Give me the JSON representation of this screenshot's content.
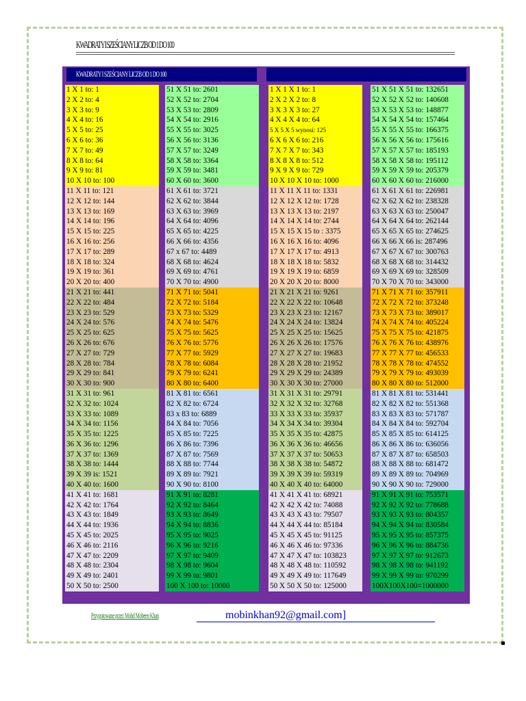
{
  "document": {
    "title": "KWADRATY I SZEŚCIANY LICZB OD 1 DO 100",
    "header_left": "KWADRATY I SZEŚCIANY LICZB OD 1 DO 100",
    "header_right": "",
    "footer_prepared": "Przygotowane przez Mohd Mobeen Khan",
    "footer_email": "mobinkhan92@gmail.com]"
  },
  "colors": {
    "outer": "#7030a0",
    "header": "#000080",
    "group_left": [
      "#ffff00",
      "#fbd4b4",
      "#c4bc96",
      "#c2d69b",
      "#e5e0ec"
    ],
    "group_right": [
      "#99ff99",
      "#d9d9d9",
      "#ffc000",
      "#c6d9f1",
      "#00b050"
    ]
  },
  "columns": [
    {
      "groups": [
        [
          "1 X 1 to: 1",
          "2 X 2 to: 4",
          "3 X 3 to: 9",
          "4 X 4 to: 16",
          "5 X 5 to: 25",
          "6 X 6 to: 36",
          "7 X 7 to: 49",
          "8 X 8 to: 64",
          "9 X 9 to: 81",
          "10 X 10 to: 100"
        ],
        [
          "11 X 11 to: 121",
          "12 X 12 to: 144",
          "13 X 13 to: 169",
          "14 X 14 to: 196",
          "15 X 15 to: 225",
          "16 X 16 to: 256",
          "17 X 17 to: 289",
          "18 X 18 to: 324",
          "19 X 19 to: 361",
          "20 X 20 to: 400"
        ],
        [
          "21 X 21 to: 441",
          "22 X 22 to: 484",
          "23 X 23 to: 529",
          "24 X 24 to: 576",
          "25 X 25 to: 625",
          "26 X 26 to: 676",
          "27 X 27 to: 729",
          "28 X 28 to: 784",
          "29 X 29 to: 841",
          "30 X 30 to: 900"
        ],
        [
          "31 X 31 to: 961",
          "32 X 32 to: 1024",
          "33 X 33 to: 1089",
          "34 X 34 to: 1156",
          "35 X 35 to: 1225",
          "36 X 36 to: 1296",
          "37 X 37 to: 1369",
          "38 X 38 to: 1444",
          "39 X 39 is: 1521",
          "40 X 40 to: 1600"
        ],
        [
          "41 X 41 to: 1681",
          "42 X 42 to: 1764",
          "43 X 43 to: 1849",
          "44 X 44 to: 1936",
          "45 X 45 to: 2025",
          "46 X 46 to: 2116",
          "47 X 47 to: 2209",
          "48 X 48 to: 2304",
          "49 X 49 to: 2401",
          "50 X 50 to: 2500"
        ]
      ]
    },
    {
      "groups": [
        [
          "51 X 51 to: 2601",
          "52 X 52 to: 2704",
          "53 X 53 to: 2809",
          "54 X 54 to: 2916",
          "55 X 55 to: 3025",
          "56 X 56 to: 3136",
          "57 X 57 to: 3249",
          "58 X 58 to: 3364",
          "59 X 59 to: 3481",
          "60 X 60 to: 3600"
        ],
        [
          "61 X 61 to: 3721",
          "62 X 62 to: 3844",
          "63 X 63 to: 3969",
          "64 X 64 to: 4096",
          "65 X 65 to: 4225",
          "66 X 66 to: 4356",
          "67 x 67 to: 4489",
          "68 X 68 to: 4624",
          "69 X 69 to: 4761",
          "70 X 70 to: 4900"
        ],
        [
          "71 X 71 to: 5041",
          "72 X 72 to: 5184",
          "73 X 73 to: 5329",
          "74 X 74 to: 5476",
          "75 X 75 to: 5625",
          "76 X 76 to: 5776",
          "77 X 77 to: 5929",
          "78 X 78 to: 6084",
          "79 X 79 to: 6241",
          "80 X 80 to: 6400"
        ],
        [
          "81 X 81 to: 6561",
          "82 X 82 to: 6724",
          "83 x 83 to: 6889",
          "84 X 84 to: 7056",
          "85 X 85 to: 7225",
          "86 X 86 to: 7396",
          "87 X 87 to: 7569",
          "88 X 88 to: 7744",
          "89 X 89 to: 7921",
          "90 X 90 to: 8100"
        ],
        [
          "91 X 91 to: 8281",
          "92 X 92 to: 8464",
          "93 X 93 to: 8649",
          "94 X 94 to: 8836",
          "95 X 95 to: 9025",
          "96 X 96 to: 9216",
          "97 X 97 to: 9409",
          "98 X 98 to: 9604",
          "99 X 99 to: 9801",
          "100 X 100 to: 10000"
        ]
      ]
    },
    {
      "groups": [
        [
          "1 X 1 X 1 to: 1",
          "2 X 2 X 2 to: 8",
          "3 X 3 X 3 to: 27",
          "4 X 4 X 4 to: 64",
          "5 X 5 X 5 wynosi: 125",
          "6 X 6 X 6 to: 216",
          "7 X 7 X 7 to: 343",
          "8 X 8 X 8 to: 512",
          "9 X 9 X 9 to: 729",
          "10 X 10 X 10 to: 1000"
        ],
        [
          "11 X 11 X 11 to: 1331",
          "12 X 12 X 12 to: 1728",
          "13 X 13 X 13 to: 2197",
          "14 X 14 X 14 to: 2744",
          "15 X 15 X 15 to : 3375",
          "16 X 16 X 16 to: 4096",
          "17 X 17 X 17 to: 4913",
          "18 X 18 X 18 to: 5832",
          "19 X 19 X 19 to: 6859",
          "20 X 20 X 20 to: 8000"
        ],
        [
          "21 X 21 X 21 to: 9261",
          "22 X 22 X 22 to: 10648",
          "23 X 23 X 23 to: 12167",
          "24 X 24 X 24 to: 13824",
          "25 X 25 X 25 to: 15625",
          "26 X 26 X 26 to: 17576",
          "27 X 27 X 27 to: 19683",
          "28 X 28 X 28 to: 21952",
          "29 X 29 X 29 to: 24389",
          "30 X 30 X 30 to: 27000"
        ],
        [
          "31 X 31 X 31 to: 29791",
          "32 X 32 X 32 to: 32768",
          "33 X 33 X 33 to: 35937",
          "34 X 34 X 34 to: 39304",
          "35 X 35 X 35 to: 42875",
          "36 X 36 X 36 to: 46656",
          "37 X 37 X 37 to: 50653",
          "38 X 38 X 38 to: 54872",
          "39 X 39 X 39 to: 59319",
          "40 X 40 X 40 to: 64000"
        ],
        [
          "41 X 41 X 41 to: 68921",
          "42 X 42 X 42 to: 74088",
          "43 X 43 X 43 to: 79507",
          "44 X 44 X 44 to: 85184",
          "45 X 45 X 45 to: 91125",
          "46 X 46 X 46 to: 97336",
          "47 X 47 X 47 to: 103823",
          "48 X 48 X 48 to: 110592",
          "49 X 49 X 49 to: 117649",
          "50 X 50 X 50 to: 125000"
        ]
      ]
    },
    {
      "groups": [
        [
          "51 X 51 X 51 to: 132651",
          "52 X 52 X 52 to: 140608",
          "53 X 53 X 53 to: 148877",
          "54 X 54 X 54 to: 157464",
          "55 X 55 X 55 to: 166375",
          "56 X 56 X 56 to: 175616",
          "57 X 57 X 57 to: 185193",
          "58 X 58 X 58 to: 195112",
          "59 X 59 X 59 to: 205379",
          "60 X 60 X 60 to: 216000"
        ],
        [
          "61 X 61 X 61 to: 226981",
          "62 X 62 X 62 to: 238328",
          "63 X 63 X 63 to: 250047",
          "64 X 64 X 64 to: 262144",
          "65 X 65 X 65 to: 274625",
          "66 X 66 X 66 is: 287496",
          "67 X 67 X 67 to: 300763",
          "68 X 68 X 68 to: 314432",
          "69 X 69 X 69 to: 328509",
          "70 X 70 X 70 to: 343000"
        ],
        [
          "71 X 71 X 71 to: 357911",
          "72 X 72 X 72 to: 373248",
          "73 X 73 X 73 to: 389017",
          "74 X 74 X 74 to: 405224",
          "75 X 75 X 75 to: 421875",
          "76 X 76 X 76 to: 438976",
          "77 X 77 X 77 to: 456533",
          "78 X 78 X 78 to: 474552",
          "79 X 79 X 79 to: 493039",
          "80 X 80 X 80 to: 512000"
        ],
        [
          "81 X 81 X 81 to: 531441",
          "82 X 82 X 82 to: 551368",
          "83 X 83 X 83 to: 571787",
          "84 X 84 X 84 to: 592704",
          "85 X 85 X 85 to: 614125",
          "86 X 86 X 86 to: 636056",
          "87 X 87 X 87 to: 658503",
          "88 X 88 X 88 to: 681472",
          "89 X 89 X 89 to: 704969",
          "90 X 90 X 90 to: 729000"
        ],
        [
          "91 X 91 X 91 to: 753571",
          "92 X 92 X 92 to: 778688",
          "93 X 93 X 93 to: 804357",
          "94 X 94 X 94 to: 830584",
          "95 X 95 X 95 to: 857375",
          "96 X 96 X 96 to: 884736",
          "97 X 97 X 97 to: 912673",
          "98 X 98 X 98 to: 941192",
          "99 X 99 X 99 to: 970299",
          "100X100X100=1000000"
        ]
      ]
    }
  ]
}
